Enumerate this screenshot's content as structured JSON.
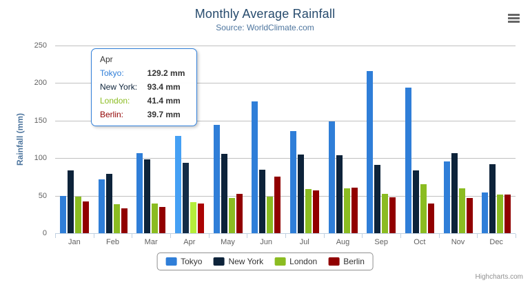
{
  "chart_data": {
    "type": "bar",
    "title": "Monthly Average Rainfall",
    "subtitle": "Source: WorldClimate.com",
    "categories": [
      "Jan",
      "Feb",
      "Mar",
      "Apr",
      "May",
      "Jun",
      "Jul",
      "Aug",
      "Sep",
      "Oct",
      "Nov",
      "Dec"
    ],
    "series": [
      {
        "name": "Tokyo",
        "color": "#2f7ed8",
        "values": [
          49.9,
          71.5,
          106.4,
          129.2,
          144.0,
          176.0,
          135.6,
          148.5,
          216.4,
          194.1,
          95.6,
          54.4
        ]
      },
      {
        "name": "New York",
        "color": "#0d233a",
        "values": [
          83.6,
          78.8,
          98.5,
          93.4,
          106.0,
          84.5,
          105.0,
          104.3,
          91.2,
          83.5,
          106.6,
          92.3
        ]
      },
      {
        "name": "London",
        "color": "#8bbc21",
        "values": [
          48.9,
          38.8,
          39.3,
          41.4,
          47.0,
          48.3,
          59.0,
          59.6,
          52.4,
          65.2,
          59.3,
          51.2
        ]
      },
      {
        "name": "Berlin",
        "color": "#910000",
        "values": [
          42.4,
          33.2,
          34.5,
          39.7,
          52.6,
          75.5,
          57.4,
          60.4,
          47.6,
          39.1,
          46.8,
          51.1
        ]
      }
    ],
    "xlabel": "",
    "ylabel": "Rainfall (mm)",
    "ylim": [
      0,
      250
    ],
    "yticks": [
      0,
      50,
      100,
      150,
      200,
      250
    ],
    "grid": true,
    "legend_position": "bottom"
  },
  "hovered_category": "Apr",
  "tooltip": {
    "header": "Apr",
    "border_color": "#2f7ed8",
    "rows": [
      {
        "name": "Tokyo",
        "value": "129.2 mm",
        "color": "#2f7ed8"
      },
      {
        "name": "New York",
        "value": "93.4 mm",
        "color": "#0d233a"
      },
      {
        "name": "London",
        "value": "41.4 mm",
        "color": "#8bbc21"
      },
      {
        "name": "Berlin",
        "value": "39.7 mm",
        "color": "#910000"
      }
    ]
  },
  "credits": {
    "label": "Highcharts.com"
  },
  "theme": {
    "title_color": "#274b6d",
    "subtitle_color": "#4d759e",
    "axis_title_color": "#4d759e",
    "axis_label_color": "#606060",
    "grid_color": "#c0c0c0",
    "axis_line_color": "#c0d0e0",
    "legend_border_color": "#909090",
    "credits_color": "#909090"
  }
}
